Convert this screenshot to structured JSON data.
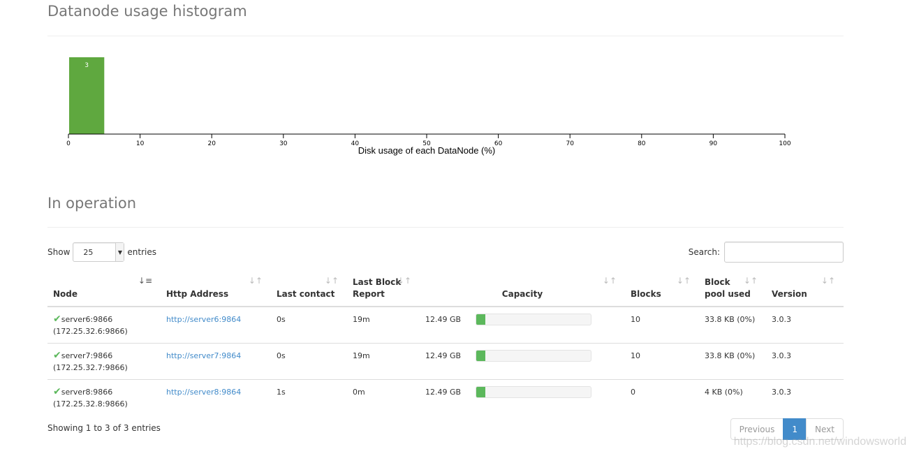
{
  "histogram": {
    "title": "Datanode usage histogram",
    "chart_data": {
      "type": "bar",
      "bins": [
        {
          "x0": 0,
          "x1": 5,
          "count": 3
        }
      ],
      "xlabel": "Disk usage of each DataNode (%)",
      "xlim": [
        0,
        100
      ],
      "xticks": [
        "0",
        "10",
        "20",
        "30",
        "40",
        "50",
        "60",
        "70",
        "80",
        "90",
        "100"
      ],
      "bar_color": "#5fa83f"
    }
  },
  "operation": {
    "title": "In operation",
    "show_label": "Show",
    "entries_value": "25",
    "entries_label": "entries",
    "search_label": "Search:",
    "columns": [
      {
        "label": "Node",
        "sort": "sort-asc-icon"
      },
      {
        "label": "Http Address",
        "sort": "sort-both-icon"
      },
      {
        "label": "Last contact",
        "sort": "sort-both-icon"
      },
      {
        "label": "Last Block\nReport",
        "sort": "sort-both-icon"
      },
      {
        "label": "Capacity",
        "sort": "sort-both-icon"
      },
      {
        "label": "Blocks",
        "sort": "sort-both-icon"
      },
      {
        "label": "Block\npool used",
        "sort": "sort-both-icon"
      },
      {
        "label": "Version",
        "sort": "sort-both-icon"
      }
    ],
    "rows": [
      {
        "node": "server6:9866",
        "ip": "(172.25.32.6:9866)",
        "http": "http://server6:9864",
        "last_contact": "0s",
        "last_block_report": "19m",
        "capacity": "12.49 GB",
        "used_fraction": 0.08,
        "blocks": "10",
        "block_pool_used": "33.8 KB (0%)",
        "version": "3.0.3"
      },
      {
        "node": "server7:9866",
        "ip": "(172.25.32.7:9866)",
        "http": "http://server7:9864",
        "last_contact": "0s",
        "last_block_report": "19m",
        "capacity": "12.49 GB",
        "used_fraction": 0.08,
        "blocks": "10",
        "block_pool_used": "33.8 KB (0%)",
        "version": "3.0.3"
      },
      {
        "node": "server8:9866",
        "ip": "(172.25.32.8:9866)",
        "http": "http://server8:9864",
        "last_contact": "1s",
        "last_block_report": "0m",
        "capacity": "12.49 GB",
        "used_fraction": 0.08,
        "blocks": "0",
        "block_pool_used": "4 KB (0%)",
        "version": "3.0.3"
      }
    ],
    "info": "Showing 1 to 3 of 3 entries",
    "pagination": {
      "previous": "Previous",
      "current": "1",
      "next": "Next"
    }
  },
  "watermark": "https://blog.csdn.net/windowsworld"
}
